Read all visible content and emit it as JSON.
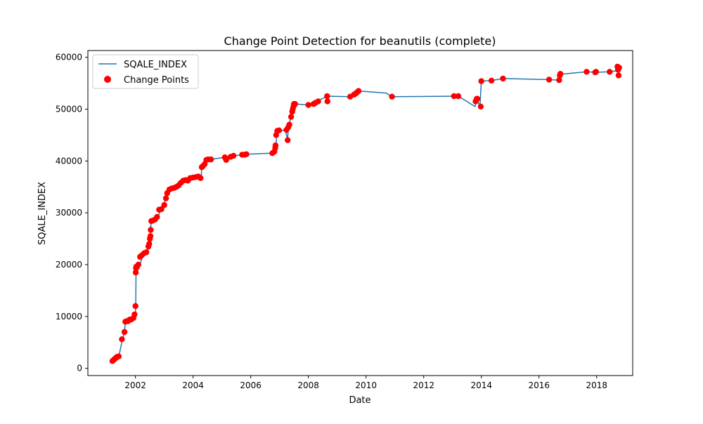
{
  "chart_data": {
    "type": "line",
    "title": "Change Point Detection for beanutils (complete)",
    "xlabel": "Date",
    "ylabel": "SQALE_INDEX",
    "x_ticks": [
      "2002",
      "2004",
      "2006",
      "2008",
      "2010",
      "2012",
      "2014",
      "2016",
      "2018"
    ],
    "y_ticks": [
      "0",
      "10000",
      "20000",
      "30000",
      "40000",
      "50000",
      "60000"
    ],
    "xlim": [
      2000.35,
      2019.25
    ],
    "ylim": [
      -1400,
      61300
    ],
    "grid": false,
    "legend": "top-left",
    "colors": {
      "line": "#1f77b4",
      "points": "#ff0000"
    },
    "series": [
      {
        "name": "SQALE_INDEX",
        "style": "line",
        "x": [
          2001.2,
          2001.25,
          2001.3,
          2001.35,
          2001.42,
          2001.55,
          2001.62,
          2001.65,
          2001.72,
          2001.85,
          2001.97,
          2002.0,
          2002.01,
          2002.02,
          2002.04,
          2002.15,
          2002.25,
          2002.4,
          2002.48,
          2002.5,
          2002.55,
          2002.6,
          2002.75,
          2002.82,
          2002.9,
          2003.0,
          2003.05,
          2003.12,
          2003.2,
          2003.4,
          2003.55,
          2003.7,
          2003.85,
          2004.0,
          2004.2,
          2004.28,
          2004.3,
          2004.35,
          2004.42,
          2004.5,
          2004.6,
          2005.1,
          2005.15,
          2005.3,
          2005.45,
          2005.7,
          2005.85,
          2006.75,
          2006.85,
          2006.87,
          2006.9,
          2006.95,
          2007.0,
          2007.2,
          2007.28,
          2007.3,
          2007.32,
          2007.4,
          2007.45,
          2007.5,
          2007.52,
          2007.55,
          2008.0,
          2008.15,
          2008.3,
          2008.65,
          2009.45,
          2009.6,
          2009.75,
          2010.7,
          2010.9,
          2013.05,
          2013.2,
          2013.78,
          2013.82,
          2013.85,
          2013.95,
          2014.0,
          2014.35,
          2014.75,
          2016.35,
          2016.65,
          2016.7,
          2017.65,
          2017.95,
          2018.45,
          2018.72,
          2018.75,
          2018.78
        ],
        "values": [
          1400,
          1600,
          1800,
          2000,
          2200,
          5600,
          7000,
          9000,
          9100,
          9400,
          9700,
          10400,
          12000,
          18500,
          19300,
          20000,
          21500,
          22200,
          24000,
          25500,
          28400,
          28500,
          28700,
          29800,
          30700,
          31500,
          33500,
          34200,
          34700,
          35300,
          36200,
          36300,
          36700,
          36800,
          37000,
          36700,
          38800,
          39400,
          40200,
          40300,
          40300,
          40700,
          40200,
          40800,
          41000,
          41200,
          41300,
          41500,
          41800,
          42500,
          45000,
          45800,
          45800,
          46000,
          44000,
          46500,
          47000,
          48500,
          50000,
          51000,
          51000,
          51000,
          50800,
          51200,
          51500,
          52500,
          52400,
          52800,
          53500,
          53100,
          52400,
          52500,
          52500,
          50500,
          51500,
          52000,
          50500,
          55400,
          55500,
          55900,
          55700,
          55600,
          56700,
          57200,
          57100,
          57200,
          57400,
          58000,
          56500
        ]
      },
      {
        "name": "Change Points",
        "style": "scatter",
        "x": [
          2001.2,
          2001.24,
          2001.28,
          2001.32,
          2001.36,
          2001.42,
          2001.53,
          2001.62,
          2001.65,
          2001.7,
          2001.74,
          2001.8,
          2001.85,
          2001.93,
          2001.97,
          2002.0,
          2002.01,
          2002.02,
          2002.03,
          2002.05,
          2002.1,
          2002.16,
          2002.22,
          2002.3,
          2002.38,
          2002.45,
          2002.48,
          2002.5,
          2002.52,
          2002.53,
          2002.55,
          2002.6,
          2002.68,
          2002.75,
          2002.82,
          2002.9,
          2003.0,
          2003.06,
          2003.1,
          2003.18,
          2003.26,
          2003.34,
          2003.42,
          2003.5,
          2003.58,
          2003.66,
          2003.74,
          2003.82,
          2003.9,
          2004.0,
          2004.1,
          2004.18,
          2004.26,
          2004.3,
          2004.34,
          2004.4,
          2004.46,
          2004.52,
          2004.62,
          2005.1,
          2005.15,
          2005.3,
          2005.4,
          2005.7,
          2005.78,
          2005.85,
          2006.75,
          2006.82,
          2006.85,
          2006.86,
          2006.88,
          2006.92,
          2006.98,
          2007.24,
          2007.28,
          2007.3,
          2007.34,
          2007.4,
          2007.44,
          2007.46,
          2007.48,
          2007.5,
          2007.52,
          2007.54,
          2008.0,
          2008.18,
          2008.24,
          2008.34,
          2008.65,
          2008.66,
          2009.45,
          2009.58,
          2009.64,
          2009.68,
          2009.74,
          2010.9,
          2013.05,
          2013.2,
          2013.8,
          2013.84,
          2013.86,
          2013.98,
          2014.0,
          2014.35,
          2014.75,
          2016.35,
          2016.7,
          2016.72,
          2016.74,
          2017.65,
          2017.95,
          2017.98,
          2018.45,
          2018.72,
          2018.74,
          2018.76,
          2018.78
        ],
        "values": [
          1400,
          1600,
          1800,
          2000,
          2200,
          2300,
          5600,
          7000,
          9000,
          9100,
          9100,
          9400,
          9400,
          9700,
          10400,
          12000,
          18500,
          19300,
          19600,
          19500,
          20000,
          21500,
          21800,
          22200,
          22400,
          23500,
          24000,
          25000,
          25500,
          26700,
          28400,
          28500,
          28700,
          29200,
          30600,
          30700,
          31500,
          32800,
          33800,
          34500,
          34700,
          34800,
          35000,
          35300,
          35800,
          36200,
          36300,
          36200,
          36700,
          36800,
          36900,
          37000,
          36700,
          38800,
          39000,
          39400,
          40200,
          40300,
          40300,
          40700,
          40200,
          40800,
          41000,
          41200,
          41200,
          41300,
          41500,
          41800,
          42500,
          43000,
          45000,
          45800,
          45900,
          46000,
          44000,
          46500,
          47000,
          48500,
          49500,
          50000,
          50500,
          51000,
          51000,
          51000,
          50800,
          51000,
          51200,
          51500,
          52500,
          51500,
          52400,
          52800,
          53000,
          53200,
          53500,
          52400,
          52500,
          52500,
          51500,
          52000,
          52000,
          50500,
          55400,
          55500,
          55900,
          55700,
          55600,
          56500,
          56800,
          57200,
          57100,
          57200,
          57200,
          58200,
          57600,
          56500,
          58000
        ]
      }
    ]
  }
}
